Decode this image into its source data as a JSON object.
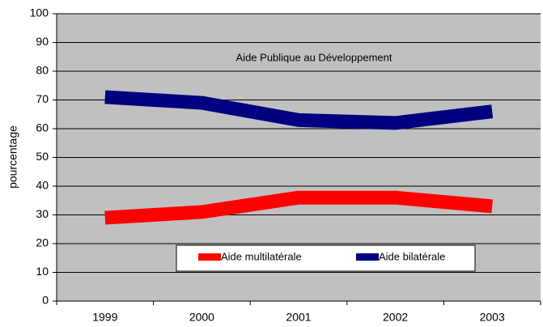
{
  "chart_data": {
    "type": "line",
    "title": "Aide Publique au Développement",
    "y_label": "pourcentage",
    "categories": [
      "1999",
      "2000",
      "2001",
      "2002",
      "2003"
    ],
    "series": [
      {
        "name": "Aide multilatérale",
        "color": "#ff0000",
        "values": [
          29,
          31,
          36,
          36,
          33
        ]
      },
      {
        "name": "Aide bilatérale",
        "color": "#000080",
        "values": [
          71,
          69,
          63,
          62,
          66
        ]
      }
    ],
    "ylim": [
      0,
      100
    ],
    "yticks": [
      0,
      10,
      20,
      30,
      40,
      50,
      60,
      70,
      80,
      90,
      100
    ],
    "grid": true,
    "background": "#c0c0c0"
  }
}
